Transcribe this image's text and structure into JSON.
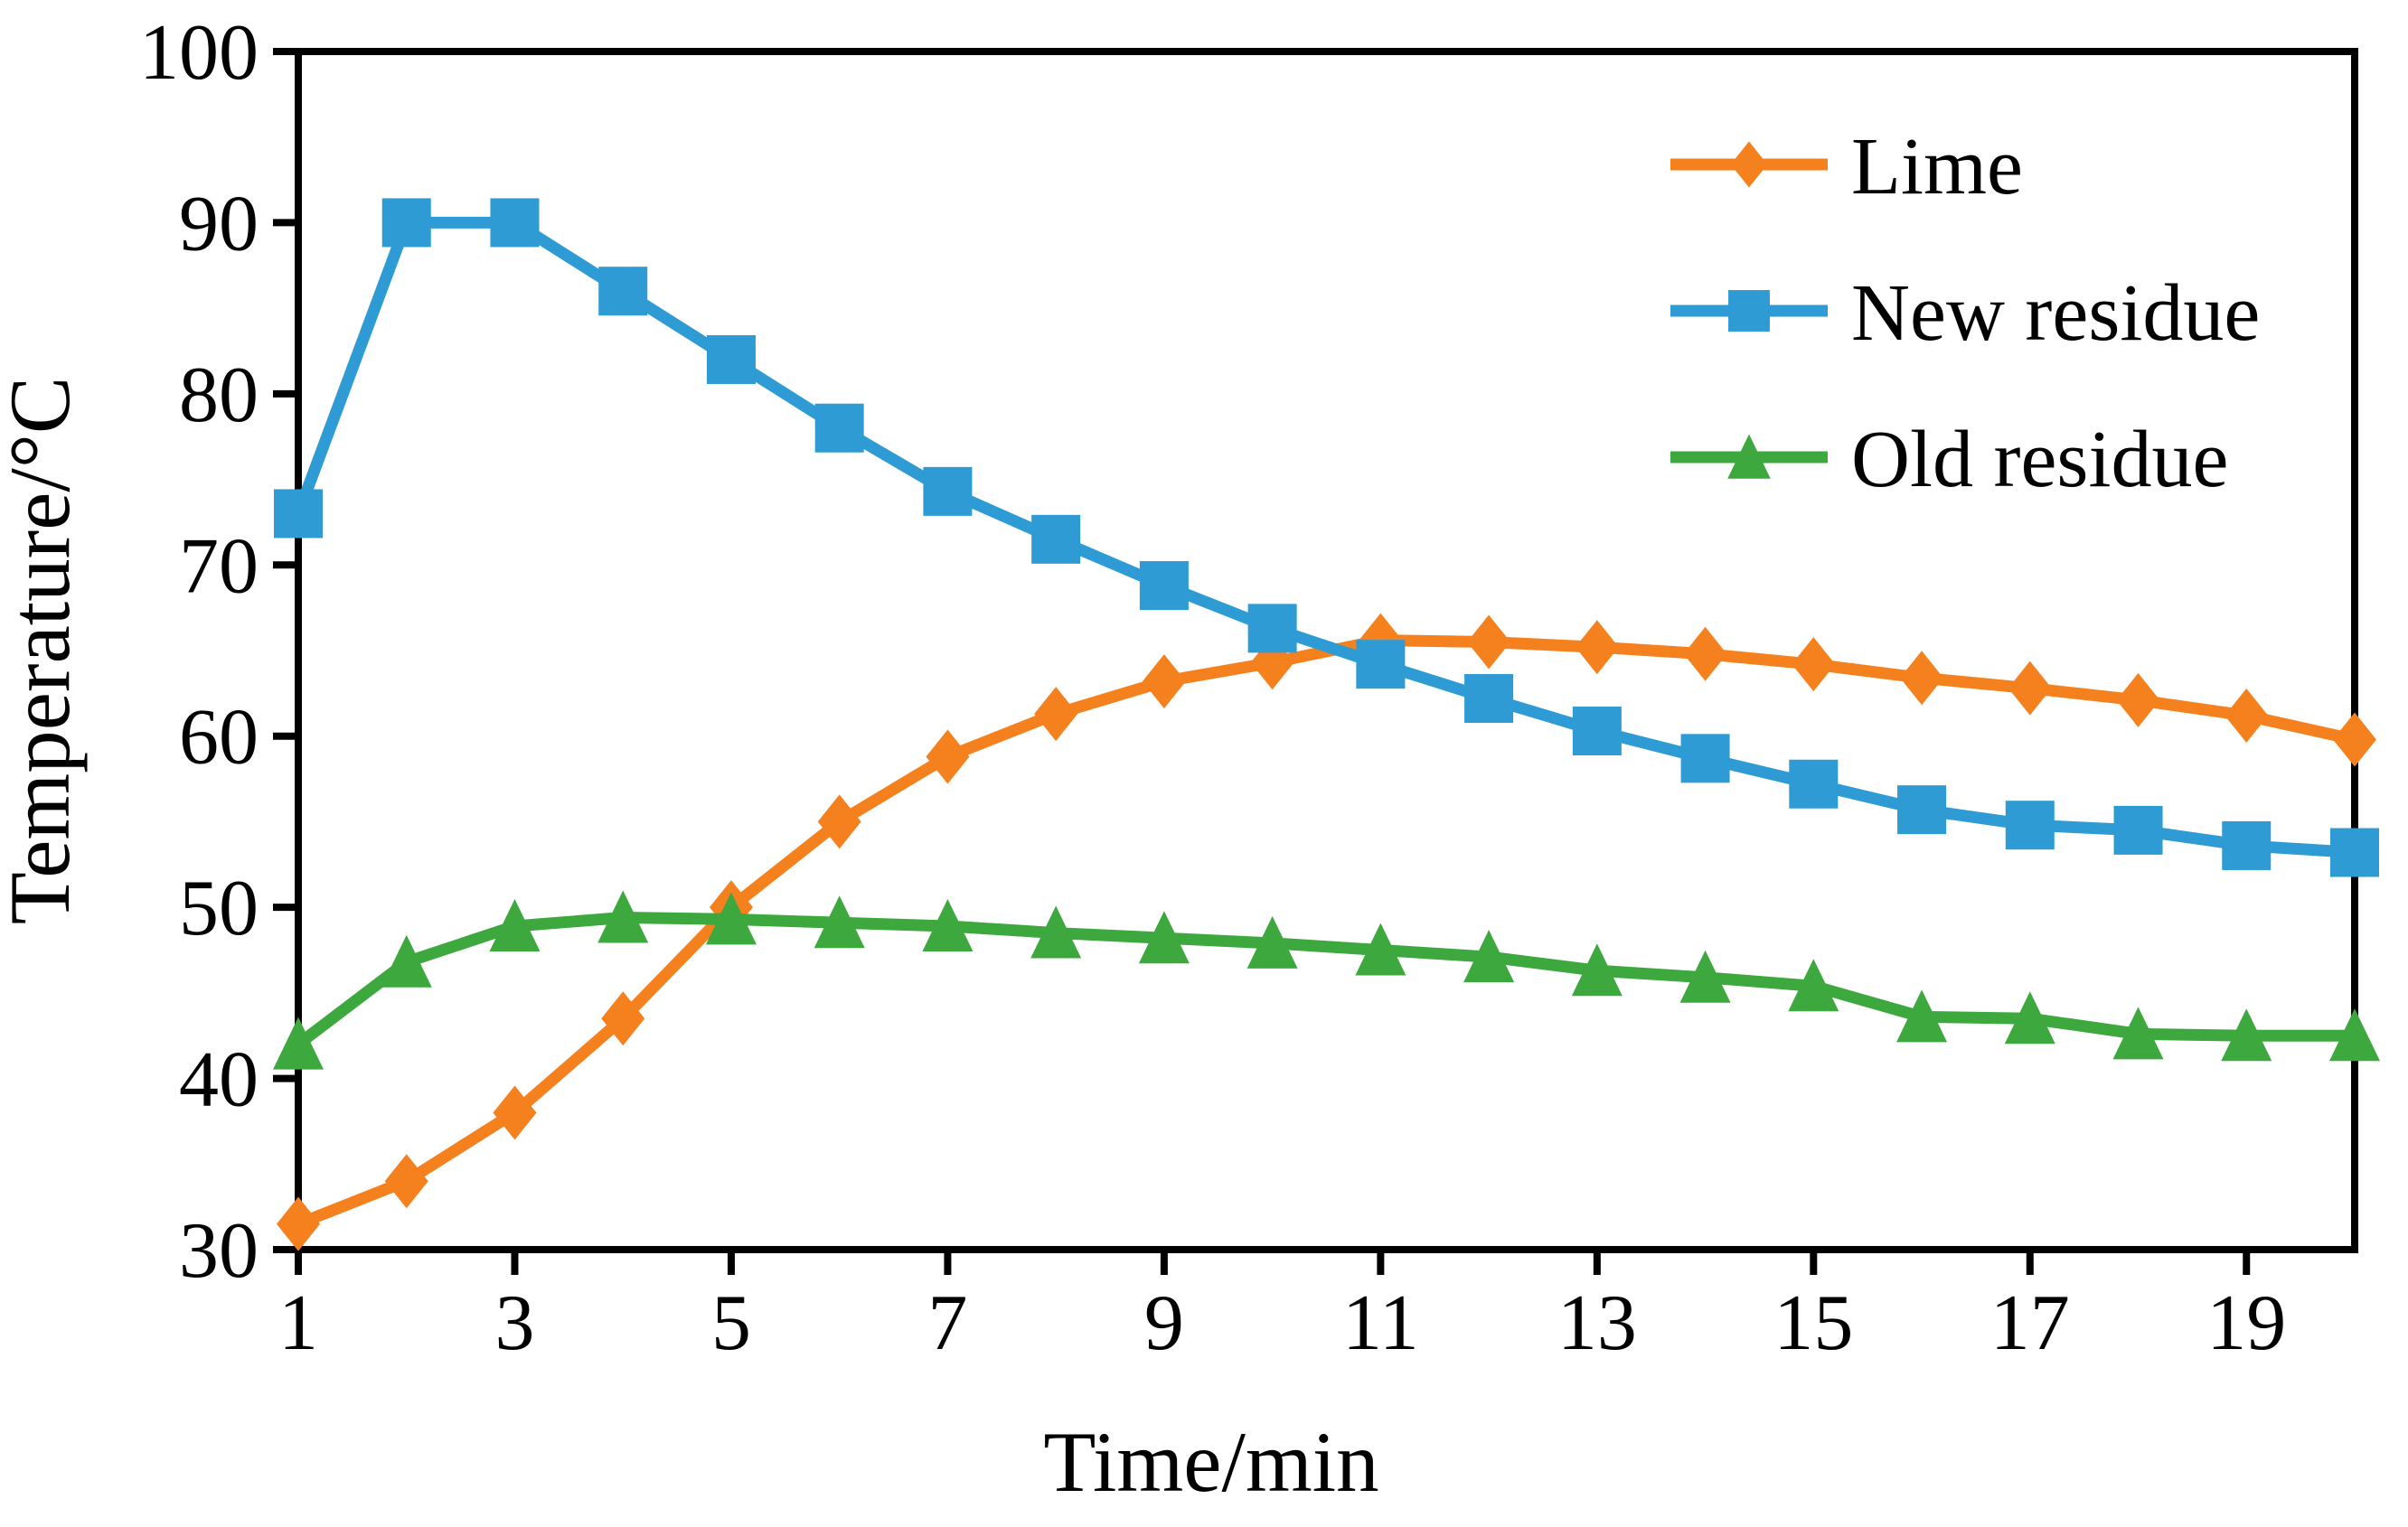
{
  "chart_data": {
    "type": "line",
    "title": "",
    "xlabel": "Time/min",
    "ylabel": "Temperature/°C",
    "xlim": [
      1,
      20
    ],
    "ylim": [
      30,
      100
    ],
    "x_tick_labels": [
      "1",
      "3",
      "5",
      "7",
      "9",
      "11",
      "13",
      "15",
      "17",
      "19"
    ],
    "x_tick_values": [
      1,
      3,
      5,
      7,
      9,
      11,
      13,
      15,
      17,
      19
    ],
    "y_tick_labels": [
      "30",
      "40",
      "50",
      "60",
      "70",
      "80",
      "90",
      "100"
    ],
    "y_tick_values": [
      30,
      40,
      50,
      60,
      70,
      80,
      90,
      100
    ],
    "grid": false,
    "frame": true,
    "axis_color": "#000000",
    "background_color": "#ffffff",
    "legend_position": "upper-right-inside",
    "x": [
      1,
      2,
      3,
      4,
      5,
      6,
      7,
      8,
      9,
      10,
      11,
      12,
      13,
      14,
      15,
      16,
      17,
      18,
      19,
      20
    ],
    "series": [
      {
        "name": "Lime",
        "color": "#F5811E",
        "marker": "diamond",
        "values": [
          31.5,
          34.0,
          38.0,
          43.5,
          50.0,
          55.0,
          58.8,
          61.3,
          63.2,
          64.3,
          65.6,
          65.5,
          65.2,
          64.8,
          64.2,
          63.4,
          62.8,
          62.1,
          61.2,
          59.8
        ]
      },
      {
        "name": "New residue",
        "color": "#2E9BD5",
        "marker": "square",
        "values": [
          73.0,
          90.0,
          90.0,
          86.0,
          82.0,
          78.0,
          74.3,
          71.5,
          68.8,
          66.3,
          64.2,
          62.2,
          60.3,
          58.7,
          57.2,
          55.7,
          54.8,
          54.5,
          53.6,
          53.2
        ]
      },
      {
        "name": "Old residue",
        "color": "#3DA83D",
        "marker": "triangle",
        "values": [
          42.0,
          46.8,
          48.9,
          49.4,
          49.3,
          49.1,
          48.9,
          48.5,
          48.2,
          47.9,
          47.5,
          47.1,
          46.3,
          45.9,
          45.4,
          43.6,
          43.5,
          42.6,
          42.5,
          42.5
        ]
      }
    ]
  }
}
